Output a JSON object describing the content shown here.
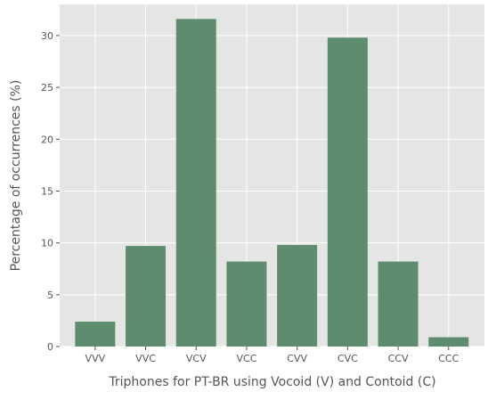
{
  "chart_data": {
    "type": "bar",
    "title": "",
    "xlabel": "Triphones for PT-BR using Vocoid (V) and Contoid (C)",
    "ylabel": "Percentage of occurrences (%)",
    "categories": [
      "VVV",
      "VVC",
      "VCV",
      "VCC",
      "CVV",
      "CVC",
      "CCV",
      "CCC"
    ],
    "values": [
      2.4,
      9.7,
      31.6,
      8.2,
      9.8,
      29.8,
      8.2,
      0.9
    ],
    "ylim": [
      0,
      33
    ],
    "yticks": [
      "0",
      "5",
      "10",
      "15",
      "20",
      "25",
      "30"
    ],
    "grid": true,
    "legend": "none",
    "colors": {
      "bar": "#5d8c6e",
      "plot_background": "#e5e5e5",
      "grid": "#ffffff",
      "text": "#555555"
    }
  }
}
